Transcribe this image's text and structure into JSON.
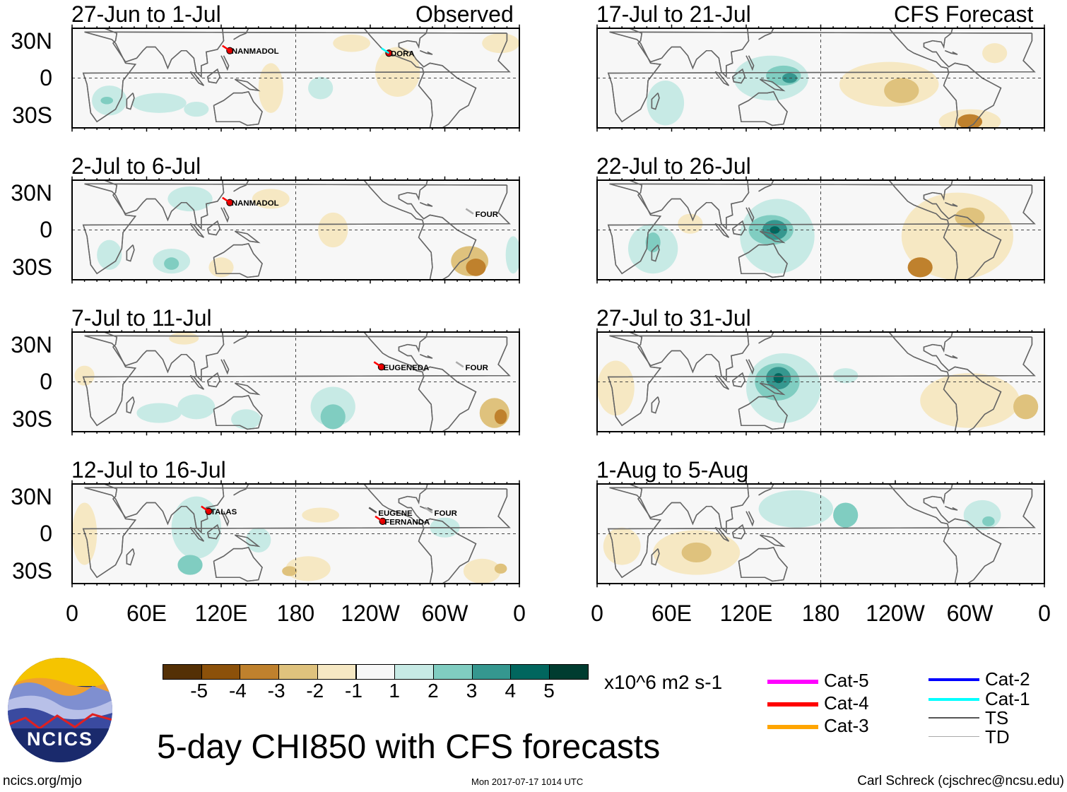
{
  "headers": {
    "left": "Observed",
    "right": "CFS Forecast"
  },
  "lat_labels": [
    "30N",
    "0",
    "30S"
  ],
  "lon_labels": [
    {
      "lon": 0,
      "label": "0"
    },
    {
      "lon": 60,
      "label": "60E"
    },
    {
      "lon": 120,
      "label": "120E"
    },
    {
      "lon": 180,
      "label": "180"
    },
    {
      "lon": 240,
      "label": "120W"
    },
    {
      "lon": 300,
      "label": "60W"
    },
    {
      "lon": 360,
      "label": "0"
    }
  ],
  "colors": {
    "neg5": "#543005",
    "neg4": "#8c510a",
    "neg3": "#bf812d",
    "neg2": "#dfc27d",
    "neg1": "#f6e8c3",
    "zero": "#f7f7f7",
    "pos1": "#c7eae5",
    "pos2": "#80cdc1",
    "pos3": "#35978f",
    "pos4": "#01665e",
    "pos5": "#003c30",
    "land": "#666666"
  },
  "panels": [
    {
      "title": "27-Jun to 1-Jul",
      "col": 0,
      "row": 0,
      "anomalies": [
        [
          30,
          -18,
          14,
          12,
          1.5
        ],
        [
          28,
          -18,
          5,
          3,
          2.5
        ],
        [
          70,
          -20,
          22,
          8,
          1.5
        ],
        [
          200,
          -8,
          10,
          9,
          1.5
        ],
        [
          160,
          -8,
          10,
          20,
          -1.5
        ],
        [
          262,
          5,
          18,
          20,
          -1.5
        ],
        [
          345,
          28,
          15,
          8,
          -1.5
        ],
        [
          225,
          28,
          15,
          7,
          -1.5
        ],
        [
          100,
          -25,
          10,
          6,
          1.5
        ]
      ],
      "storms": [
        {
          "name": "NANMADOL",
          "lon": 127,
          "lat": 22,
          "cat": "Cat-4"
        },
        {
          "name": "DORA",
          "lon": 255,
          "lat": 20,
          "cat": "Cat-1"
        }
      ]
    },
    {
      "title": "2-Jul to 6-Jul",
      "col": 0,
      "row": 1,
      "anomalies": [
        [
          80,
          -25,
          15,
          10,
          1.5
        ],
        [
          80,
          -27,
          6,
          5,
          2.5
        ],
        [
          30,
          -20,
          10,
          12,
          1.5
        ],
        [
          95,
          25,
          18,
          10,
          1.5
        ],
        [
          160,
          25,
          15,
          8,
          -1.5
        ],
        [
          210,
          0,
          12,
          14,
          -1.5
        ],
        [
          120,
          -30,
          10,
          8,
          -1.5
        ],
        [
          320,
          -25,
          15,
          12,
          -2
        ],
        [
          325,
          -30,
          8,
          7,
          -3.5
        ],
        [
          355,
          -20,
          6,
          15,
          1.5
        ]
      ],
      "storms": [
        {
          "name": "NANMADOL",
          "lon": 127,
          "lat": 22,
          "cat": "Cat-4"
        },
        {
          "name": "FOUR",
          "lon": 323,
          "lat": 13,
          "cat": "TD"
        }
      ]
    },
    {
      "title": "7-Jul to 11-Jul",
      "col": 0,
      "row": 2,
      "anomalies": [
        [
          10,
          5,
          8,
          8,
          -1.5
        ],
        [
          70,
          -25,
          18,
          8,
          1.5
        ],
        [
          100,
          -20,
          15,
          10,
          1.5
        ],
        [
          140,
          -30,
          12,
          8,
          1.5
        ],
        [
          210,
          -20,
          18,
          16,
          1.5
        ],
        [
          210,
          -28,
          10,
          10,
          2.5
        ],
        [
          340,
          -25,
          12,
          12,
          -2
        ],
        [
          345,
          -28,
          5,
          6,
          -3.5
        ],
        [
          90,
          35,
          12,
          5,
          -1.5
        ]
      ],
      "storms": [
        {
          "name": "EUGENEDA",
          "lon": 249,
          "lat": 12,
          "cat": "Cat-4"
        },
        {
          "name": "FOUR",
          "lon": 315,
          "lat": 12,
          "cat": "TD"
        }
      ]
    },
    {
      "title": "12-Jul to 16-Jul",
      "col": 0,
      "row": 3,
      "anomalies": [
        [
          10,
          0,
          10,
          25,
          -1.5
        ],
        [
          100,
          5,
          20,
          25,
          1.5
        ],
        [
          95,
          -25,
          10,
          8,
          2.5
        ],
        [
          150,
          -5,
          10,
          10,
          1.5
        ],
        [
          200,
          15,
          15,
          6,
          -1.5
        ],
        [
          190,
          -28,
          18,
          10,
          -1.5
        ],
        [
          175,
          -30,
          6,
          4,
          -2.5
        ],
        [
          330,
          -30,
          15,
          10,
          -1.5
        ],
        [
          345,
          -28,
          5,
          4,
          -2.5
        ],
        [
          300,
          5,
          12,
          8,
          1.5
        ]
      ],
      "storms": [
        {
          "name": "TALAS",
          "lon": 110,
          "lat": 18,
          "cat": "Cat-4"
        },
        {
          "name": "EUGENE",
          "lon": 245,
          "lat": 17,
          "cat": "TS"
        },
        {
          "name": "FERNANDA",
          "lon": 250,
          "lat": 10,
          "cat": "Cat-4"
        },
        {
          "name": "FOUR",
          "lon": 290,
          "lat": 17,
          "cat": "TD"
        }
      ]
    },
    {
      "title": "17-Jul to 21-Jul",
      "col": 1,
      "row": 0,
      "anomalies": [
        [
          140,
          0,
          30,
          18,
          1.5
        ],
        [
          150,
          2,
          14,
          8,
          2.5
        ],
        [
          155,
          0,
          6,
          4,
          3.5
        ],
        [
          55,
          -20,
          15,
          18,
          1.5
        ],
        [
          235,
          -5,
          40,
          18,
          -1.5
        ],
        [
          245,
          -10,
          14,
          10,
          -2.5
        ],
        [
          300,
          -35,
          25,
          10,
          -1.5
        ],
        [
          300,
          -35,
          10,
          6,
          -3
        ],
        [
          320,
          20,
          10,
          8,
          -1.5
        ]
      ],
      "storms": []
    },
    {
      "title": "22-Jul to 26-Jul",
      "col": 1,
      "row": 1,
      "anomalies": [
        [
          145,
          -5,
          30,
          30,
          1.5
        ],
        [
          140,
          0,
          18,
          12,
          2.5
        ],
        [
          143,
          0,
          10,
          8,
          3.5
        ],
        [
          143,
          0,
          4,
          3,
          4.5
        ],
        [
          45,
          -15,
          20,
          20,
          1.5
        ],
        [
          45,
          -10,
          6,
          8,
          2.5
        ],
        [
          75,
          5,
          10,
          8,
          -1.5
        ],
        [
          290,
          -5,
          45,
          35,
          -1.5
        ],
        [
          300,
          10,
          12,
          8,
          -2.5
        ],
        [
          260,
          -30,
          10,
          8,
          -3
        ]
      ],
      "storms": []
    },
    {
      "title": "27-Jul to 31-Jul",
      "col": 1,
      "row": 2,
      "anomalies": [
        [
          150,
          -5,
          30,
          28,
          1.5
        ],
        [
          145,
          0,
          18,
          15,
          2.5
        ],
        [
          146,
          3,
          10,
          9,
          3.5
        ],
        [
          146,
          3,
          4,
          4,
          4.5
        ],
        [
          200,
          5,
          10,
          6,
          1.5
        ],
        [
          15,
          -5,
          15,
          22,
          -1.5
        ],
        [
          300,
          -15,
          40,
          22,
          -1.5
        ],
        [
          345,
          -20,
          10,
          10,
          -2.5
        ]
      ],
      "storms": []
    },
    {
      "title": "1-Aug to 5-Aug",
      "col": 1,
      "row": 3,
      "anomalies": [
        [
          160,
          20,
          30,
          15,
          1.5
        ],
        [
          200,
          15,
          10,
          10,
          2.5
        ],
        [
          310,
          15,
          15,
          12,
          1.5
        ],
        [
          315,
          10,
          5,
          4,
          2.5
        ],
        [
          80,
          -15,
          35,
          18,
          -1.5
        ],
        [
          80,
          -15,
          12,
          8,
          -2.5
        ],
        [
          20,
          -10,
          15,
          15,
          -1.5
        ]
      ],
      "storms": []
    }
  ],
  "colorbar": {
    "labels": [
      "-5",
      "-4",
      "-3",
      "-2",
      "-1",
      "1",
      "2",
      "3",
      "4",
      "5"
    ],
    "units": "x10^6 m2 s-1"
  },
  "track_legend": [
    {
      "label": "Cat-5",
      "color": "#ff00ff"
    },
    {
      "label": "Cat-4",
      "color": "#ff0000"
    },
    {
      "label": "Cat-3",
      "color": "#ffa500"
    },
    {
      "label": "Cat-2",
      "color": "#0000ff"
    },
    {
      "label": "Cat-1",
      "color": "#00ffff"
    },
    {
      "label": "TS",
      "color": "#555555"
    },
    {
      "label": "TD",
      "color": "#aaaaaa"
    }
  ],
  "logo": {
    "text": "NCICS"
  },
  "main_title": "5-day CHI850 with CFS forecasts",
  "footer": {
    "url": "ncics.org/mjo",
    "timestamp": "Mon 2017-07-17 1014 UTC",
    "credit": "Carl Schreck (cjschrec@ncsu.edu)"
  }
}
